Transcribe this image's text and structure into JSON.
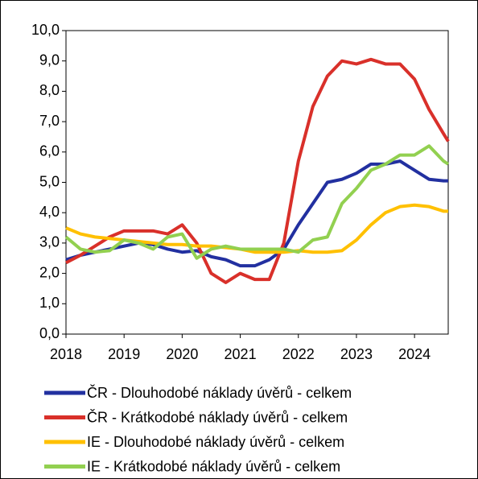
{
  "chart_data": {
    "type": "line",
    "x": [
      2018,
      2018.25,
      2018.5,
      2018.75,
      2019,
      2019.25,
      2019.5,
      2019.75,
      2020,
      2020.25,
      2020.5,
      2020.75,
      2021,
      2021.25,
      2021.5,
      2021.75,
      2022,
      2022.25,
      2022.5,
      2022.75,
      2023,
      2023.25,
      2023.5,
      2023.75,
      2024,
      2024.25,
      2024.5,
      2024.58
    ],
    "series": [
      {
        "name": "ČR - Dlouhodobé náklady úvěrů - celkem",
        "color": "#2230a0",
        "values": [
          2.45,
          2.6,
          2.7,
          2.8,
          2.9,
          3.0,
          2.95,
          2.8,
          2.7,
          2.75,
          2.55,
          2.45,
          2.25,
          2.25,
          2.45,
          2.8,
          3.6,
          4.3,
          5.0,
          5.1,
          5.3,
          5.6,
          5.6,
          5.7,
          5.4,
          5.1,
          5.05,
          5.05
        ]
      },
      {
        "name": "ČR - Krátkodobé náklady úvěrů - celkem",
        "color": "#d9302a",
        "values": [
          2.35,
          2.6,
          2.9,
          3.2,
          3.4,
          3.4,
          3.4,
          3.3,
          3.6,
          3.0,
          2.0,
          1.7,
          2.0,
          1.8,
          1.8,
          3.0,
          5.7,
          7.5,
          8.5,
          9.0,
          8.9,
          9.05,
          8.9,
          8.9,
          8.4,
          7.4,
          6.6,
          6.35
        ]
      },
      {
        "name": "IE - Dlouhodobé náklady úvěrů - celkem",
        "color": "#ffc000",
        "values": [
          3.5,
          3.3,
          3.2,
          3.15,
          3.1,
          3.05,
          3.0,
          2.95,
          2.95,
          2.9,
          2.9,
          2.85,
          2.8,
          2.7,
          2.7,
          2.7,
          2.75,
          2.7,
          2.7,
          2.75,
          3.1,
          3.6,
          4.0,
          4.2,
          4.25,
          4.2,
          4.05,
          4.05
        ]
      },
      {
        "name": "IE - Krátkodobé náklady úvěrů - celkem",
        "color": "#92d050",
        "values": [
          3.2,
          2.8,
          2.7,
          2.75,
          3.1,
          3.0,
          2.8,
          3.2,
          3.3,
          2.5,
          2.8,
          2.9,
          2.8,
          2.8,
          2.8,
          2.8,
          2.7,
          3.1,
          3.2,
          4.3,
          4.8,
          5.4,
          5.6,
          5.9,
          5.9,
          6.2,
          5.7,
          5.6
        ]
      }
    ],
    "xlim": [
      2018,
      2024.58
    ],
    "xticks": [
      2018,
      2019,
      2020,
      2021,
      2022,
      2023,
      2024
    ],
    "ylim": [
      0,
      10
    ],
    "yticks": [
      {
        "value": 0,
        "label": "0,0"
      },
      {
        "value": 1,
        "label": "1,0"
      },
      {
        "value": 2,
        "label": "2,0"
      },
      {
        "value": 3,
        "label": "3,0"
      },
      {
        "value": 4,
        "label": "4,0"
      },
      {
        "value": 5,
        "label": "5,0"
      },
      {
        "value": 6,
        "label": "6,0"
      },
      {
        "value": 7,
        "label": "7,0"
      },
      {
        "value": 8,
        "label": "8,0"
      },
      {
        "value": 9,
        "label": "9,0"
      },
      {
        "value": 10,
        "label": "10,0"
      }
    ],
    "grid": false,
    "legend": "bottom"
  }
}
